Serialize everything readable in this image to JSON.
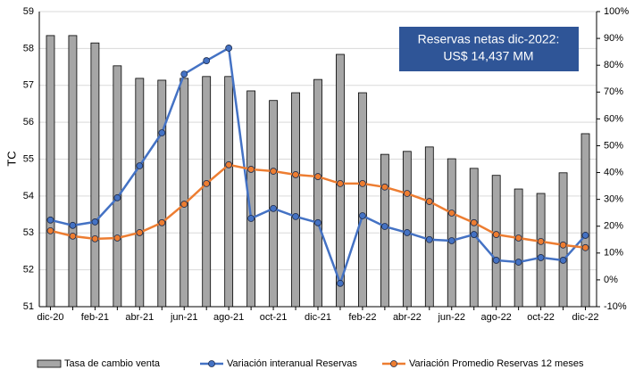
{
  "chart_data": {
    "type": "bar-line",
    "y_label": "TC",
    "annotation": [
      "Reservas netas dic-2022:",
      "US$ 14,437 MM"
    ],
    "categories": [
      "dic-20",
      null,
      "feb-21",
      null,
      "abr-21",
      null,
      "jun-21",
      null,
      "ago-21",
      null,
      "oct-21",
      null,
      "dic-21",
      null,
      "feb-22",
      null,
      "abr-22",
      null,
      "jun-22",
      null,
      "ago-22",
      null,
      "oct-22",
      null,
      "dic-22"
    ],
    "series": [
      {
        "name": "Tasa de cambio venta",
        "kind": "bar",
        "color": "#a6a6a6",
        "values": [
          58.35,
          58.35,
          58.15,
          57.53,
          57.19,
          57.14,
          57.19,
          57.24,
          57.24,
          56.85,
          56.59,
          56.8,
          57.16,
          57.84,
          56.8,
          55.13,
          55.21,
          55.33,
          55.01,
          54.75,
          54.56,
          54.19,
          54.07,
          54.63,
          55.69
        ]
      },
      {
        "name": "Variación interanual Reservas",
        "kind": "line",
        "axis": "y2",
        "color": "#4472c4",
        "values": [
          22.3,
          20.3,
          21.6,
          30.6,
          42.5,
          54.8,
          76.7,
          81.7,
          86.4,
          22.9,
          26.6,
          23.6,
          21.3,
          -1.3,
          23.9,
          19.9,
          17.6,
          15,
          14.6,
          16.9,
          7.3,
          6.6,
          8.3,
          7.3,
          16.6
        ]
      },
      {
        "name": "Variación Promedio Reservas 12 meses",
        "kind": "line",
        "axis": "y2",
        "color": "#ed7d31",
        "values": [
          18.3,
          16.3,
          15.3,
          15.6,
          17.6,
          21.3,
          28.2,
          35.9,
          42.9,
          41.2,
          40.5,
          39.2,
          38.5,
          35.9,
          35.9,
          34.6,
          32.2,
          29.2,
          24.9,
          21.3,
          16.9,
          15.6,
          14.3,
          13,
          12
        ]
      }
    ],
    "ylim": [
      51,
      59
    ],
    "yticks": [
      51,
      52,
      53,
      54,
      55,
      56,
      57,
      58,
      59
    ],
    "y2lim": [
      -10,
      100
    ],
    "y2ticks": [
      {
        "value": -10,
        "label": "-10%"
      },
      {
        "value": 0,
        "label": "0%"
      },
      {
        "value": 10,
        "label": "10%"
      },
      {
        "value": 20,
        "label": "20%"
      },
      {
        "value": 30,
        "label": "30%"
      },
      {
        "value": 40,
        "label": "40%"
      },
      {
        "value": 50,
        "label": "50%"
      },
      {
        "value": 60,
        "label": "60%"
      },
      {
        "value": 70,
        "label": "70%"
      },
      {
        "value": 80,
        "label": "80%"
      },
      {
        "value": 90,
        "label": "90%"
      },
      {
        "value": 100,
        "label": "100%"
      }
    ],
    "grid": true,
    "legend": "bottom"
  }
}
